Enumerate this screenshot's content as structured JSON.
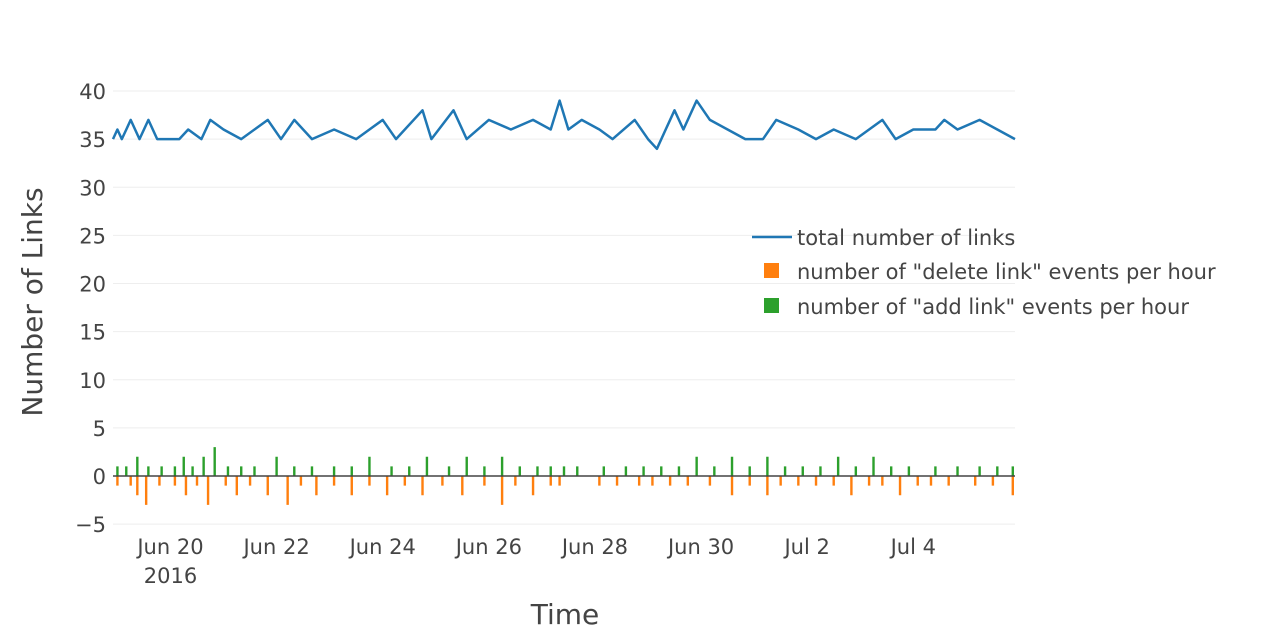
{
  "chart_data": {
    "type": "line",
    "xlabel": "Time",
    "ylabel": "Number of Links",
    "x_range": [
      "2016-06-18T22:00",
      "2016-07-05T22:00"
    ],
    "ylim": [
      -5,
      41
    ],
    "y_ticks": [
      -5,
      0,
      5,
      10,
      15,
      20,
      25,
      30,
      35,
      40
    ],
    "y_tick_labels": [
      "−5",
      "0",
      "5",
      "10",
      "15",
      "20",
      "25",
      "30",
      "35",
      "40"
    ],
    "x_ticks": [
      {
        "date": "2016-06-20",
        "label": "Jun 20",
        "sublabel": "2016"
      },
      {
        "date": "2016-06-22",
        "label": "Jun 22",
        "sublabel": ""
      },
      {
        "date": "2016-06-24",
        "label": "Jun 24",
        "sublabel": ""
      },
      {
        "date": "2016-06-26",
        "label": "Jun 26",
        "sublabel": ""
      },
      {
        "date": "2016-06-28",
        "label": "Jun 28",
        "sublabel": ""
      },
      {
        "date": "2016-06-30",
        "label": "Jun 30",
        "sublabel": ""
      },
      {
        "date": "2016-07-02",
        "label": "Jul 2",
        "sublabel": ""
      },
      {
        "date": "2016-07-04",
        "label": "Jul 4",
        "sublabel": ""
      }
    ],
    "grid": true,
    "legend_position": "right",
    "series": [
      {
        "name": "total number of links",
        "kind": "line",
        "color": "#1f77b4",
        "points": [
          [
            "2016-06-18T22:00",
            35
          ],
          [
            "2016-06-19T00:00",
            36
          ],
          [
            "2016-06-19T02:00",
            35
          ],
          [
            "2016-06-19T04:00",
            36
          ],
          [
            "2016-06-19T06:00",
            37
          ],
          [
            "2016-06-19T10:00",
            35
          ],
          [
            "2016-06-19T14:00",
            37
          ],
          [
            "2016-06-19T18:00",
            35
          ],
          [
            "2016-06-20T04:00",
            35
          ],
          [
            "2016-06-20T08:00",
            36
          ],
          [
            "2016-06-20T14:00",
            35
          ],
          [
            "2016-06-20T18:00",
            37
          ],
          [
            "2016-06-21T00:00",
            36
          ],
          [
            "2016-06-21T08:00",
            35
          ],
          [
            "2016-06-21T20:00",
            37
          ],
          [
            "2016-06-22T02:00",
            35
          ],
          [
            "2016-06-22T08:00",
            37
          ],
          [
            "2016-06-22T16:00",
            35
          ],
          [
            "2016-06-23T02:00",
            36
          ],
          [
            "2016-06-23T12:00",
            35
          ],
          [
            "2016-06-24T00:00",
            37
          ],
          [
            "2016-06-24T06:00",
            35
          ],
          [
            "2016-06-24T18:00",
            38
          ],
          [
            "2016-06-24T22:00",
            35
          ],
          [
            "2016-06-25T08:00",
            38
          ],
          [
            "2016-06-25T14:00",
            35
          ],
          [
            "2016-06-26T00:00",
            37
          ],
          [
            "2016-06-26T10:00",
            36
          ],
          [
            "2016-06-26T20:00",
            37
          ],
          [
            "2016-06-27T04:00",
            36
          ],
          [
            "2016-06-27T08:00",
            39
          ],
          [
            "2016-06-27T12:00",
            36
          ],
          [
            "2016-06-27T18:00",
            37
          ],
          [
            "2016-06-28T02:00",
            36
          ],
          [
            "2016-06-28T08:00",
            35
          ],
          [
            "2016-06-28T18:00",
            37
          ],
          [
            "2016-06-29T00:00",
            35
          ],
          [
            "2016-06-29T04:00",
            34
          ],
          [
            "2016-06-29T08:00",
            36
          ],
          [
            "2016-06-29T12:00",
            38
          ],
          [
            "2016-06-29T16:00",
            36
          ],
          [
            "2016-06-29T22:00",
            39
          ],
          [
            "2016-06-30T04:00",
            37
          ],
          [
            "2016-06-30T12:00",
            36
          ],
          [
            "2016-06-30T20:00",
            35
          ],
          [
            "2016-07-01T04:00",
            35
          ],
          [
            "2016-07-01T10:00",
            37
          ],
          [
            "2016-07-01T20:00",
            36
          ],
          [
            "2016-07-02T04:00",
            35
          ],
          [
            "2016-07-02T12:00",
            36
          ],
          [
            "2016-07-02T22:00",
            35
          ],
          [
            "2016-07-03T04:00",
            36
          ],
          [
            "2016-07-03T10:00",
            37
          ],
          [
            "2016-07-03T16:00",
            35
          ],
          [
            "2016-07-04T00:00",
            36
          ],
          [
            "2016-07-04T10:00",
            36
          ],
          [
            "2016-07-04T14:00",
            37
          ],
          [
            "2016-07-04T20:00",
            36
          ],
          [
            "2016-07-05T06:00",
            37
          ],
          [
            "2016-07-05T14:00",
            36
          ],
          [
            "2016-07-05T22:00",
            35
          ]
        ]
      },
      {
        "name": "number of \"delete link\" events per hour",
        "kind": "bar",
        "color": "#ff7f0e",
        "points": [
          [
            "2016-06-19T00:00",
            -1
          ],
          [
            "2016-06-19T06:00",
            -1
          ],
          [
            "2016-06-19T09:00",
            -2
          ],
          [
            "2016-06-19T13:00",
            -3
          ],
          [
            "2016-06-19T19:00",
            -1
          ],
          [
            "2016-06-20T02:00",
            -1
          ],
          [
            "2016-06-20T07:00",
            -2
          ],
          [
            "2016-06-20T12:00",
            -1
          ],
          [
            "2016-06-20T17:00",
            -3
          ],
          [
            "2016-06-21T01:00",
            -1
          ],
          [
            "2016-06-21T06:00",
            -2
          ],
          [
            "2016-06-21T12:00",
            -1
          ],
          [
            "2016-06-21T20:00",
            -2
          ],
          [
            "2016-06-22T05:00",
            -3
          ],
          [
            "2016-06-22T11:00",
            -1
          ],
          [
            "2016-06-22T18:00",
            -2
          ],
          [
            "2016-06-23T02:00",
            -1
          ],
          [
            "2016-06-23T10:00",
            -2
          ],
          [
            "2016-06-23T18:00",
            -1
          ],
          [
            "2016-06-24T02:00",
            -2
          ],
          [
            "2016-06-24T10:00",
            -1
          ],
          [
            "2016-06-24T18:00",
            -2
          ],
          [
            "2016-06-25T03:00",
            -1
          ],
          [
            "2016-06-25T12:00",
            -2
          ],
          [
            "2016-06-25T22:00",
            -1
          ],
          [
            "2016-06-26T06:00",
            -3
          ],
          [
            "2016-06-26T12:00",
            -1
          ],
          [
            "2016-06-26T20:00",
            -2
          ],
          [
            "2016-06-27T04:00",
            -1
          ],
          [
            "2016-06-27T08:00",
            -1
          ],
          [
            "2016-06-28T02:00",
            -1
          ],
          [
            "2016-06-28T10:00",
            -1
          ],
          [
            "2016-06-28T20:00",
            -1
          ],
          [
            "2016-06-29T02:00",
            -1
          ],
          [
            "2016-06-29T10:00",
            -1
          ],
          [
            "2016-06-29T18:00",
            -1
          ],
          [
            "2016-06-30T04:00",
            -1
          ],
          [
            "2016-06-30T14:00",
            -2
          ],
          [
            "2016-06-30T22:00",
            -1
          ],
          [
            "2016-07-01T06:00",
            -2
          ],
          [
            "2016-07-01T12:00",
            -1
          ],
          [
            "2016-07-01T20:00",
            -1
          ],
          [
            "2016-07-02T04:00",
            -1
          ],
          [
            "2016-07-02T12:00",
            -1
          ],
          [
            "2016-07-02T20:00",
            -2
          ],
          [
            "2016-07-03T04:00",
            -1
          ],
          [
            "2016-07-03T10:00",
            -1
          ],
          [
            "2016-07-03T18:00",
            -2
          ],
          [
            "2016-07-04T02:00",
            -1
          ],
          [
            "2016-07-04T08:00",
            -1
          ],
          [
            "2016-07-04T16:00",
            -1
          ],
          [
            "2016-07-05T04:00",
            -1
          ],
          [
            "2016-07-05T12:00",
            -1
          ],
          [
            "2016-07-05T21:00",
            -2
          ]
        ]
      },
      {
        "name": "number of \"add link\" events per hour",
        "kind": "bar",
        "color": "#2ca02c",
        "points": [
          [
            "2016-06-19T00:00",
            1
          ],
          [
            "2016-06-19T04:00",
            1
          ],
          [
            "2016-06-19T09:00",
            2
          ],
          [
            "2016-06-19T14:00",
            1
          ],
          [
            "2016-06-19T20:00",
            1
          ],
          [
            "2016-06-20T02:00",
            1
          ],
          [
            "2016-06-20T06:00",
            2
          ],
          [
            "2016-06-20T10:00",
            1
          ],
          [
            "2016-06-20T15:00",
            2
          ],
          [
            "2016-06-20T20:00",
            3
          ],
          [
            "2016-06-21T02:00",
            1
          ],
          [
            "2016-06-21T08:00",
            1
          ],
          [
            "2016-06-21T14:00",
            1
          ],
          [
            "2016-06-22T00:00",
            2
          ],
          [
            "2016-06-22T08:00",
            1
          ],
          [
            "2016-06-22T16:00",
            1
          ],
          [
            "2016-06-23T02:00",
            1
          ],
          [
            "2016-06-23T10:00",
            1
          ],
          [
            "2016-06-23T18:00",
            2
          ],
          [
            "2016-06-24T04:00",
            1
          ],
          [
            "2016-06-24T12:00",
            1
          ],
          [
            "2016-06-24T20:00",
            2
          ],
          [
            "2016-06-25T06:00",
            1
          ],
          [
            "2016-06-25T14:00",
            2
          ],
          [
            "2016-06-25T22:00",
            1
          ],
          [
            "2016-06-26T06:00",
            2
          ],
          [
            "2016-06-26T14:00",
            1
          ],
          [
            "2016-06-26T22:00",
            1
          ],
          [
            "2016-06-27T04:00",
            1
          ],
          [
            "2016-06-27T10:00",
            1
          ],
          [
            "2016-06-27T16:00",
            1
          ],
          [
            "2016-06-28T04:00",
            1
          ],
          [
            "2016-06-28T14:00",
            1
          ],
          [
            "2016-06-28T22:00",
            1
          ],
          [
            "2016-06-29T06:00",
            1
          ],
          [
            "2016-06-29T14:00",
            1
          ],
          [
            "2016-06-29T22:00",
            2
          ],
          [
            "2016-06-30T06:00",
            1
          ],
          [
            "2016-06-30T14:00",
            2
          ],
          [
            "2016-06-30T22:00",
            1
          ],
          [
            "2016-07-01T06:00",
            2
          ],
          [
            "2016-07-01T14:00",
            1
          ],
          [
            "2016-07-01T22:00",
            1
          ],
          [
            "2016-07-02T06:00",
            1
          ],
          [
            "2016-07-02T14:00",
            2
          ],
          [
            "2016-07-02T22:00",
            1
          ],
          [
            "2016-07-03T06:00",
            2
          ],
          [
            "2016-07-03T14:00",
            1
          ],
          [
            "2016-07-03T22:00",
            1
          ],
          [
            "2016-07-04T10:00",
            1
          ],
          [
            "2016-07-04T20:00",
            1
          ],
          [
            "2016-07-05T06:00",
            1
          ],
          [
            "2016-07-05T14:00",
            1
          ],
          [
            "2016-07-05T21:00",
            1
          ]
        ]
      }
    ]
  }
}
